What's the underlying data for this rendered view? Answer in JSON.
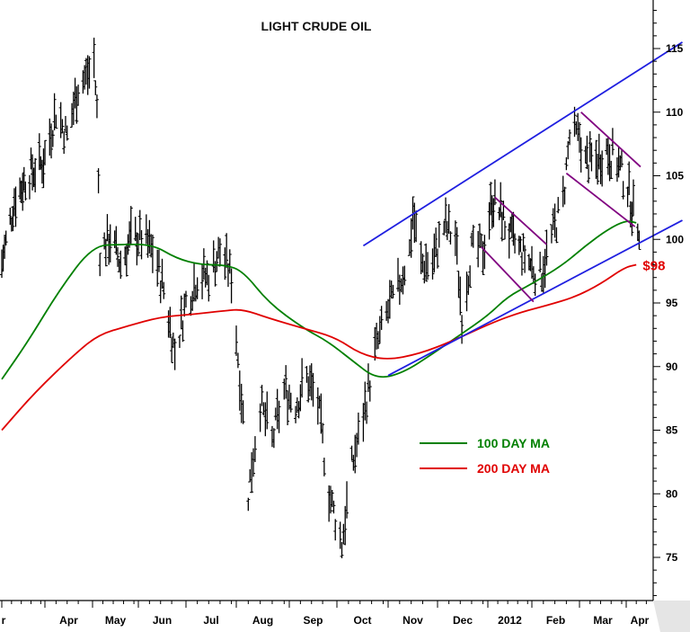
{
  "chart_data": {
    "type": "line",
    "title": "LIGHT CRUDE OIL",
    "xlabel": "",
    "ylabel": "",
    "y_ticks": [
      75,
      80,
      85,
      90,
      95,
      100,
      105,
      110,
      115
    ],
    "ylim": [
      71,
      120
    ],
    "x_ticks": [
      "Mar",
      "Apr",
      "May",
      "Jun",
      "Jul",
      "Aug",
      "Sep",
      "Oct",
      "Nov",
      "Dec",
      "2012",
      "Feb",
      "Mar",
      "Apr"
    ],
    "x_tick_labels_shown": [
      "r",
      "Apr",
      "May",
      "Jun",
      "Jul",
      "Aug",
      "Sep",
      "Oct",
      "Nov",
      "Dec",
      "2012",
      "Feb",
      "Mar",
      "Apr"
    ],
    "grid": false,
    "price_bars": {
      "name": "Light crude oil daily price",
      "color": "#000000",
      "path": [
        [
          "2011-03-01",
          98
        ],
        [
          "2011-03-10",
          103
        ],
        [
          "2011-03-20",
          105
        ],
        [
          "2011-03-31",
          106
        ],
        [
          "2011-04-08",
          110
        ],
        [
          "2011-04-15",
          108
        ],
        [
          "2011-04-22",
          112
        ],
        [
          "2011-04-29",
          113
        ],
        [
          "2011-05-02",
          114
        ],
        [
          "2011-05-04",
          110
        ],
        [
          "2011-05-06",
          99
        ],
        [
          "2011-05-13",
          100
        ],
        [
          "2011-05-20",
          98
        ],
        [
          "2011-05-27",
          100
        ],
        [
          "2011-06-03",
          100
        ],
        [
          "2011-06-10",
          99
        ],
        [
          "2011-06-17",
          96
        ],
        [
          "2011-06-24",
          91
        ],
        [
          "2011-07-01",
          95
        ],
        [
          "2011-07-08",
          97
        ],
        [
          "2011-07-15",
          97
        ],
        [
          "2011-07-22",
          99
        ],
        [
          "2011-07-29",
          97
        ],
        [
          "2011-08-05",
          86
        ],
        [
          "2011-08-08",
          80
        ],
        [
          "2011-08-15",
          87
        ],
        [
          "2011-08-22",
          84
        ],
        [
          "2011-08-29",
          88
        ],
        [
          "2011-09-05",
          87
        ],
        [
          "2011-09-12",
          89
        ],
        [
          "2011-09-19",
          87
        ],
        [
          "2011-09-26",
          80
        ],
        [
          "2011-10-04",
          76
        ],
        [
          "2011-10-10",
          82
        ],
        [
          "2011-10-17",
          86
        ],
        [
          "2011-10-24",
          91
        ],
        [
          "2011-10-31",
          94
        ],
        [
          "2011-11-07",
          96
        ],
        [
          "2011-11-14",
          99
        ],
        [
          "2011-11-16",
          102
        ],
        [
          "2011-11-21",
          98
        ],
        [
          "2011-11-28",
          98
        ],
        [
          "2011-12-05",
          101
        ],
        [
          "2011-12-12",
          100
        ],
        [
          "2011-12-16",
          94
        ],
        [
          "2011-12-22",
          99
        ],
        [
          "2011-12-29",
          99
        ],
        [
          "2012-01-04",
          103
        ],
        [
          "2012-01-10",
          102
        ],
        [
          "2012-01-17",
          100
        ],
        [
          "2012-01-24",
          99
        ],
        [
          "2012-01-31",
          98
        ],
        [
          "2012-02-06",
          97
        ],
        [
          "2012-02-13",
          100
        ],
        [
          "2012-02-20",
          103
        ],
        [
          "2012-02-24",
          108
        ],
        [
          "2012-03-01",
          108
        ],
        [
          "2012-03-05",
          106
        ],
        [
          "2012-03-12",
          106
        ],
        [
          "2012-03-19",
          107
        ],
        [
          "2012-03-26",
          106
        ],
        [
          "2012-04-02",
          104
        ],
        [
          "2012-04-06",
          102
        ],
        [
          "2012-04-10",
          101
        ]
      ]
    },
    "series": [
      {
        "name": "100 DAY MA",
        "color": "#008000",
        "points": [
          [
            "2011-03-01",
            89
          ],
          [
            "2011-03-20",
            92
          ],
          [
            "2011-04-10",
            96
          ],
          [
            "2011-05-01",
            99.5
          ],
          [
            "2011-05-20",
            99.6
          ],
          [
            "2011-06-10",
            99.6
          ],
          [
            "2011-06-25",
            98.5
          ],
          [
            "2011-07-10",
            98
          ],
          [
            "2011-07-25",
            98
          ],
          [
            "2011-08-05",
            97.5
          ],
          [
            "2011-08-20",
            95
          ],
          [
            "2011-09-10",
            93
          ],
          [
            "2011-09-25",
            92
          ],
          [
            "2011-10-10",
            90.5
          ],
          [
            "2011-10-25",
            89
          ],
          [
            "2011-11-10",
            89.5
          ],
          [
            "2011-11-28",
            91
          ],
          [
            "2011-12-15",
            92.5
          ],
          [
            "2012-01-01",
            94
          ],
          [
            "2012-01-15",
            95.5
          ],
          [
            "2012-02-01",
            96.5
          ],
          [
            "2012-02-20",
            98
          ],
          [
            "2012-03-05",
            99.5
          ],
          [
            "2012-03-20",
            100.8
          ],
          [
            "2012-04-01",
            101.5
          ],
          [
            "2012-04-08",
            101.3
          ]
        ]
      },
      {
        "name": "200 DAY MA",
        "color": "#e00000",
        "points": [
          [
            "2011-03-01",
            85
          ],
          [
            "2011-03-25",
            88
          ],
          [
            "2011-04-20",
            91
          ],
          [
            "2011-05-05",
            92.5
          ],
          [
            "2011-05-25",
            93.2
          ],
          [
            "2011-06-15",
            93.9
          ],
          [
            "2011-07-05",
            94.1
          ],
          [
            "2011-07-25",
            94.4
          ],
          [
            "2011-08-05",
            94.5
          ],
          [
            "2011-08-20",
            93.8
          ],
          [
            "2011-09-10",
            93
          ],
          [
            "2011-09-30",
            92.3
          ],
          [
            "2011-10-15",
            91
          ],
          [
            "2011-10-31",
            90.5
          ],
          [
            "2011-11-20",
            91
          ],
          [
            "2011-12-10",
            92
          ],
          [
            "2012-01-05",
            93.5
          ],
          [
            "2012-01-25",
            94.3
          ],
          [
            "2012-02-10",
            94.8
          ],
          [
            "2012-02-28",
            95.5
          ],
          [
            "2012-03-15",
            96.5
          ],
          [
            "2012-03-31",
            97.8
          ],
          [
            "2012-04-08",
            98
          ]
        ]
      }
    ],
    "trendlines": [
      {
        "color": "#1f1fe0",
        "from": [
          "2011-10-17",
          99.5
        ],
        "to": [
          "2012-05-10",
          115.5
        ]
      },
      {
        "color": "#1f1fe0",
        "from": [
          "2011-11-01",
          89.3
        ],
        "to": [
          "2012-05-10",
          101.5
        ]
      },
      {
        "color": "#800080",
        "from": [
          "2012-01-06",
          103.3
        ],
        "to": [
          "2012-02-10",
          99.6
        ]
      },
      {
        "color": "#800080",
        "from": [
          "2011-12-28",
          99.4
        ],
        "to": [
          "2012-02-02",
          95.1
        ]
      },
      {
        "color": "#800080",
        "from": [
          "2012-03-02",
          110.0
        ],
        "to": [
          "2012-04-11",
          105.7
        ]
      },
      {
        "color": "#800080",
        "from": [
          "2012-02-22",
          105.2
        ],
        "to": [
          "2012-04-07",
          101.0
        ]
      }
    ],
    "annotations": [
      {
        "text": "$98",
        "color": "#e00000",
        "x": "2012-04-10",
        "y": 98
      }
    ],
    "legend": {
      "position": "bottom-right",
      "items": [
        {
          "label": "100 DAY MA",
          "color": "#008000"
        },
        {
          "label": "200 DAY MA",
          "color": "#e00000"
        }
      ]
    }
  }
}
